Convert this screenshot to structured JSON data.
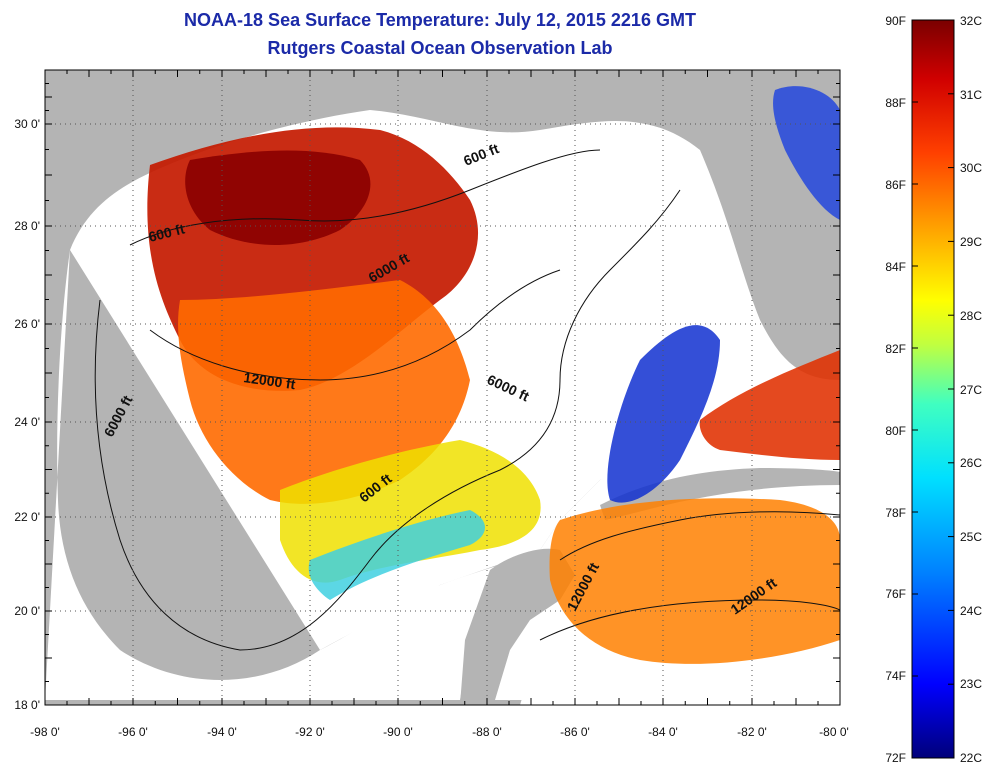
{
  "title": {
    "line1": "NOAA-18 Sea Surface Temperature:  July 12, 2015 2216 GMT",
    "line2": "Rutgers Coastal Ocean Observation Lab"
  },
  "map": {
    "lon_ticks": [
      "-98 0'",
      "-96 0'",
      "-94 0'",
      "-92 0'",
      "-90 0'",
      "-88 0'",
      "-86 0'",
      "-84 0'",
      "-82 0'",
      "-80 0'"
    ],
    "lat_ticks": [
      "18 0'",
      "20 0'",
      "22 0'",
      "24 0'",
      "26 0'",
      "28 0'",
      "30 0'"
    ],
    "contour_labels": [
      "600 ft",
      "600 ft",
      "600 ft",
      "6000 ft",
      "6000 ft",
      "6000 ft",
      "12000 ft",
      "12000 ft",
      "12000 ft"
    ],
    "colors": {
      "land": "#b4b4b4",
      "cloud": "#ffffff",
      "grid": "#555555"
    }
  },
  "colorbar": {
    "fahrenheit_labels": [
      "90F",
      "88F",
      "86F",
      "84F",
      "82F",
      "80F",
      "78F",
      "76F",
      "74F",
      "72F"
    ],
    "celsius_labels": [
      "32C",
      "31C",
      "30C",
      "29C",
      "28C",
      "27C",
      "26C",
      "25C",
      "24C",
      "23C",
      "22C"
    ],
    "range_c": [
      22,
      32
    ],
    "gradient": [
      "#00007a",
      "#0000ff",
      "#0080ff",
      "#00e0ff",
      "#40ffc0",
      "#c0ff40",
      "#ffff00",
      "#ffa000",
      "#ff4000",
      "#d00000",
      "#7a0000"
    ]
  }
}
